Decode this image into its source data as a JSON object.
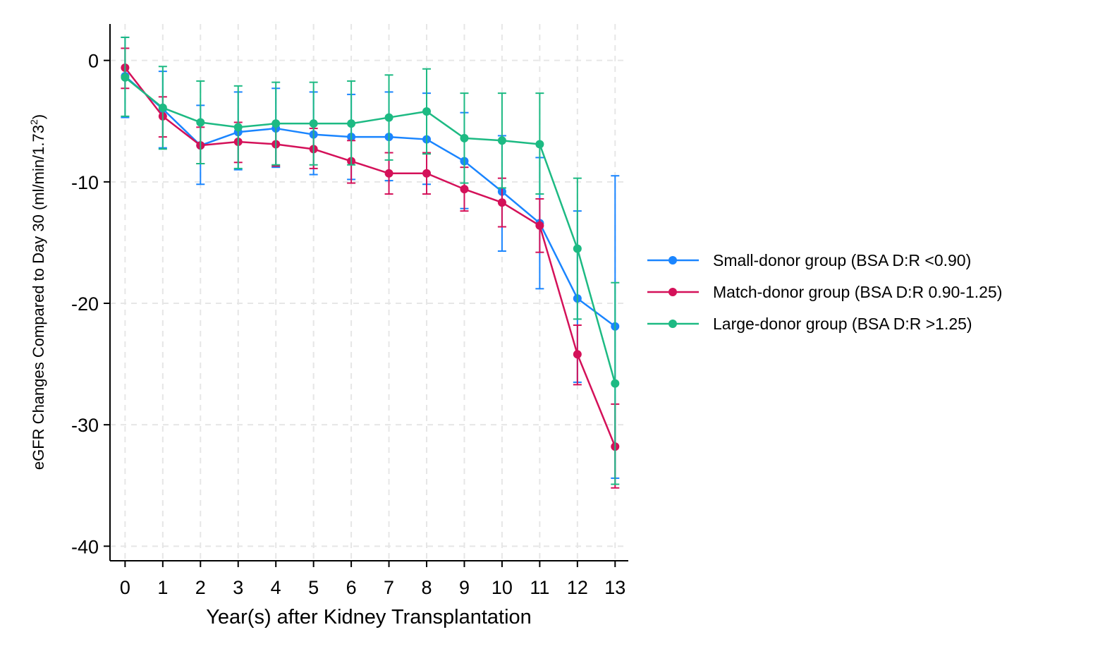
{
  "chart_data": {
    "type": "line",
    "xlabel": "Year(s) after Kidney Transplantation",
    "ylabel": {
      "text": "eGFR Changes Compared to Day 30 (ml/min/1.73",
      "superscript": "2",
      "close": ")"
    },
    "x": [
      0,
      1,
      2,
      3,
      4,
      5,
      6,
      7,
      8,
      9,
      10,
      11,
      12,
      13
    ],
    "x_ticks": [
      "0",
      "1",
      "2",
      "3",
      "4",
      "5",
      "6",
      "7",
      "8",
      "9",
      "10",
      "11",
      "12",
      "13"
    ],
    "y_ticks": [
      "0",
      "-10",
      "-20",
      "-30",
      "-40"
    ],
    "y_tick_values": [
      0,
      -10,
      -20,
      -30,
      -40
    ],
    "xlim": [
      -0.4,
      13.35
    ],
    "ylim": [
      -41.2,
      3.0
    ],
    "grid": true,
    "legend_position": "right",
    "series": [
      {
        "name": "Small-donor group (BSA D:R <0.90)",
        "color": "#1a85ff",
        "values": [
          -1.3,
          -4.0,
          -7.0,
          -5.9,
          -5.6,
          -6.1,
          -6.3,
          -6.3,
          -6.5,
          -8.3,
          -10.8,
          -13.4,
          -19.6,
          -21.9
        ],
        "ci_low": [
          -4.7,
          -7.2,
          -10.2,
          -9.0,
          -8.8,
          -9.4,
          -9.8,
          -9.9,
          -10.2,
          -12.2,
          -15.7,
          -18.8,
          -26.5,
          -34.4
        ],
        "ci_high": [
          1.9,
          -0.9,
          -3.7,
          -2.6,
          -2.3,
          -2.6,
          -2.8,
          -2.6,
          -2.7,
          -4.3,
          -6.2,
          -8.0,
          -12.4,
          -9.5
        ]
      },
      {
        "name": "Match-donor group (BSA D:R 0.90-1.25)",
        "color": "#d41159",
        "values": [
          -0.6,
          -4.6,
          -7.0,
          -6.7,
          -6.9,
          -7.3,
          -8.3,
          -9.3,
          -9.3,
          -10.6,
          -11.7,
          -13.6,
          -24.2,
          -31.8
        ],
        "ci_low": [
          -2.3,
          -6.3,
          -8.5,
          -8.4,
          -8.7,
          -8.9,
          -10.1,
          -11.0,
          -11.0,
          -12.4,
          -13.7,
          -15.8,
          -26.7,
          -35.2
        ],
        "ci_high": [
          1.0,
          -3.0,
          -5.5,
          -5.1,
          -5.2,
          -5.6,
          -6.6,
          -7.6,
          -7.6,
          -8.8,
          -9.7,
          -11.4,
          -21.8,
          -28.3
        ]
      },
      {
        "name": "Large-donor group (BSA D:R >1.25)",
        "color": "#1dba83",
        "values": [
          -1.4,
          -3.9,
          -5.1,
          -5.5,
          -5.2,
          -5.2,
          -5.2,
          -4.7,
          -4.2,
          -6.4,
          -6.6,
          -6.9,
          -15.5,
          -26.6
        ],
        "ci_low": [
          -4.6,
          -7.3,
          -8.5,
          -8.9,
          -8.6,
          -8.6,
          -8.6,
          -8.2,
          -7.7,
          -10.1,
          -10.5,
          -11.0,
          -21.3,
          -34.9
        ],
        "ci_high": [
          1.9,
          -0.5,
          -1.7,
          -2.1,
          -1.8,
          -1.8,
          -1.7,
          -1.2,
          -0.7,
          -2.7,
          -2.7,
          -2.7,
          -9.7,
          -18.3
        ]
      }
    ]
  }
}
